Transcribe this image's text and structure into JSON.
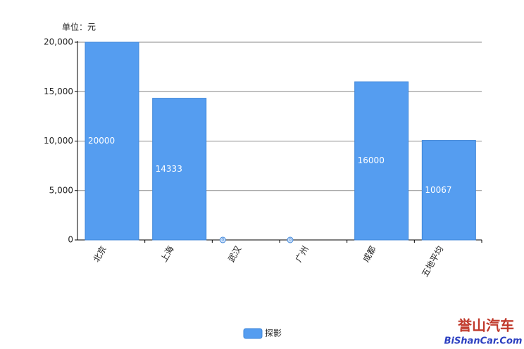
{
  "chart_data": {
    "type": "bar",
    "y_unit": "单位：元",
    "categories": [
      "北京",
      "上海",
      "武汉",
      "广州",
      "成都",
      "五地平均"
    ],
    "series": [
      {
        "name": "探影",
        "color": "#559df0",
        "values": [
          20000,
          14333,
          0,
          0,
          16000,
          10067
        ]
      }
    ],
    "ylim": [
      0,
      20000
    ],
    "yticks": [
      0,
      {
        "value": 5000,
        "label": "5,000"
      },
      {
        "value": 10000,
        "label": "10,000"
      },
      {
        "value": 15000,
        "label": "15,000"
      },
      {
        "value": 20000,
        "label": "20,000"
      }
    ],
    "grid": true,
    "legend": "bottom"
  },
  "watermark": [
    "誉山汽车",
    "BiShanCar.Com"
  ]
}
